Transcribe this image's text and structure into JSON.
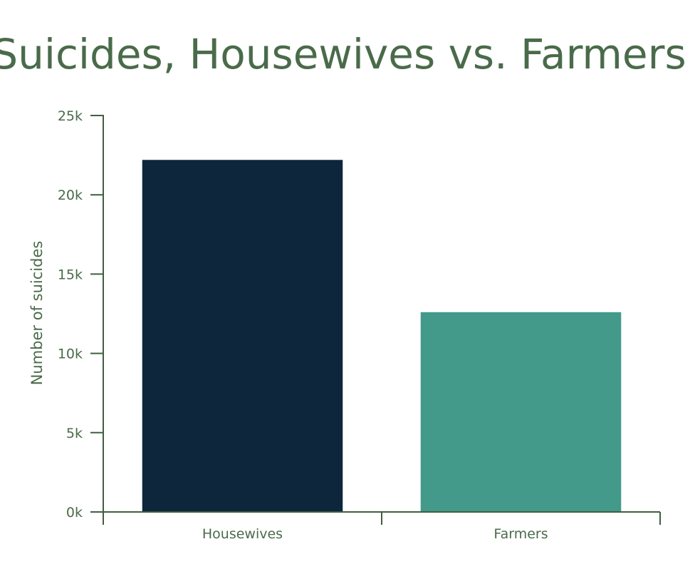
{
  "colors": {
    "text": "#4a6b4a",
    "axis": "#3f5f3f",
    "background": "#ffffff"
  },
  "chart_data": {
    "type": "bar",
    "title": "Suicides, Housewives vs. Farmers",
    "xlabel": "",
    "ylabel": "Number of suicides",
    "categories": [
      "Housewives",
      "Farmers"
    ],
    "values": [
      22200,
      12600
    ],
    "bar_colors": [
      "#0d263b",
      "#43998a"
    ],
    "ylim": [
      0,
      25000
    ],
    "yticks": [
      0,
      5000,
      10000,
      15000,
      20000,
      25000
    ],
    "ytick_labels": [
      "0k",
      "5k",
      "10k",
      "15k",
      "20k",
      "25k"
    ],
    "grid": false,
    "legend": "none"
  }
}
